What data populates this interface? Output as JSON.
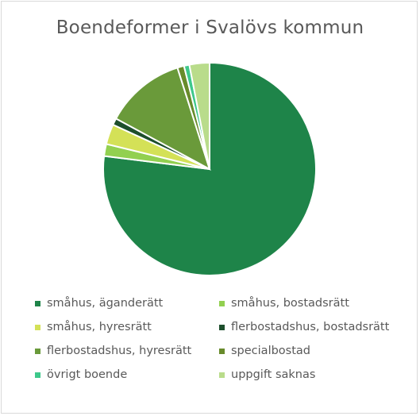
{
  "chart_data": {
    "type": "pie",
    "title": "Boendeformer  i Svalövs kommun",
    "legend_position": "bottom",
    "slices": [
      {
        "label": "småhus, äganderätt",
        "value": 75.5,
        "color": "#1e8449"
      },
      {
        "label": "småhus, bostadsrätt",
        "value": 1.8,
        "color": "#92d050"
      },
      {
        "label": "småhus, hyresrätt",
        "value": 3.0,
        "color": "#d4e157"
      },
      {
        "label": "flerbostadshus, bostadsrätt",
        "value": 1.0,
        "color": "#1d4f2c"
      },
      {
        "label": "flerbostadshus, hyresrätt",
        "value": 12.0,
        "color": "#6a9a3a"
      },
      {
        "label": "specialbostad",
        "value": 1.0,
        "color": "#688b2b"
      },
      {
        "label": "övrigt boende",
        "value": 0.8,
        "color": "#3ec88b"
      },
      {
        "label": "uppgift saknas",
        "value": 3.0,
        "color": "#b9dc8b"
      }
    ]
  }
}
